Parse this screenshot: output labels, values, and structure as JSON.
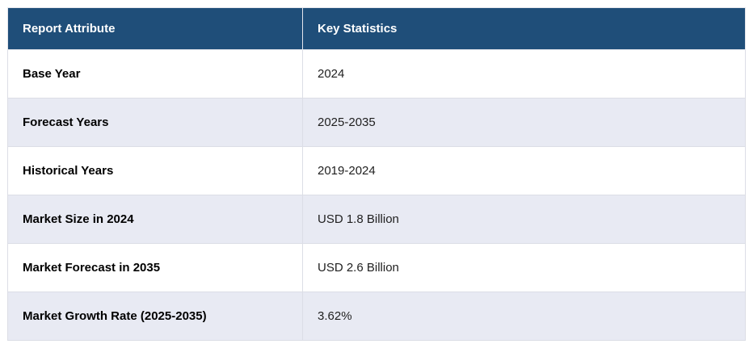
{
  "table": {
    "columns": [
      {
        "label": "Report Attribute"
      },
      {
        "label": "Key Statistics"
      }
    ],
    "rows": [
      {
        "attribute": "Base Year",
        "value": "2024"
      },
      {
        "attribute": "Forecast Years",
        "value": "2025-2035"
      },
      {
        "attribute": "Historical Years",
        "value": "2019-2024"
      },
      {
        "attribute": "Market Size in 2024",
        "value": "USD 1.8 Billion"
      },
      {
        "attribute": "Market Forecast in 2035",
        "value": "USD 2.6 Billion"
      },
      {
        "attribute": "Market Growth Rate (2025-2035)",
        "value": "3.62%"
      }
    ],
    "colors": {
      "header_bg": "#1f4e79",
      "header_text": "#ffffff",
      "row_bg": "#ffffff",
      "row_alt_bg": "#e8eaf3",
      "border": "#dcdee6"
    }
  }
}
